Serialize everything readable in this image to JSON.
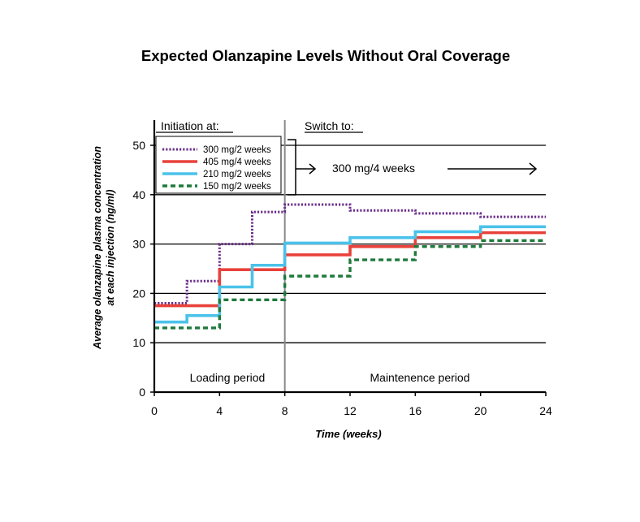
{
  "chart_data": {
    "type": "line",
    "title": "Expected Olanzapine Levels Without Oral Coverage",
    "xlabel": "Time (weeks)",
    "ylabel_line1": "Average olanzapine plasma concentration",
    "ylabel_line2": "at each injection (ng/ml)",
    "xlim": [
      0,
      24
    ],
    "ylim": [
      0,
      50
    ],
    "xticks": [
      0,
      4,
      8,
      12,
      16,
      20,
      24
    ],
    "yticks": [
      0,
      10,
      20,
      30,
      40,
      50
    ],
    "step": true,
    "grid": "horizontal",
    "annotations": {
      "initiation": "Initiation at:",
      "switch": "Switch to:",
      "switch_dose": "300 mg/4 weeks",
      "loading": "Loading period",
      "maintenance": "Maintenence period"
    },
    "switch_x": 8,
    "legend_position": "top-left",
    "series": [
      {
        "name": "300 mg/2 weeks",
        "color": "#6a2e8a",
        "style": "dotted",
        "x": [
          0,
          2,
          4,
          6,
          8,
          12,
          16,
          20,
          24
        ],
        "y": [
          18,
          22.5,
          30,
          36.5,
          38,
          36.8,
          36.2,
          35.5,
          35.5
        ]
      },
      {
        "name": "405 mg/4 weeks",
        "color": "#e8413a",
        "style": "solid",
        "x": [
          0,
          4,
          8,
          12,
          16,
          20,
          24
        ],
        "y": [
          17.5,
          24.8,
          27.8,
          29.5,
          31.3,
          32.3,
          32.3
        ]
      },
      {
        "name": "210 mg/2 weeks",
        "color": "#4ac2ea",
        "style": "solid",
        "x": [
          0,
          2,
          4,
          6,
          8,
          12,
          16,
          20,
          24
        ],
        "y": [
          14.2,
          15.5,
          21.3,
          25.7,
          30.2,
          31.3,
          32.5,
          33.5,
          33.5
        ]
      },
      {
        "name": "150 mg/2 weeks",
        "color": "#1f7a3c",
        "style": "dashed",
        "x": [
          0,
          4,
          8,
          12,
          16,
          20,
          24
        ],
        "y": [
          13,
          18.7,
          23.5,
          26.8,
          29.5,
          30.7,
          30.7
        ]
      }
    ]
  }
}
